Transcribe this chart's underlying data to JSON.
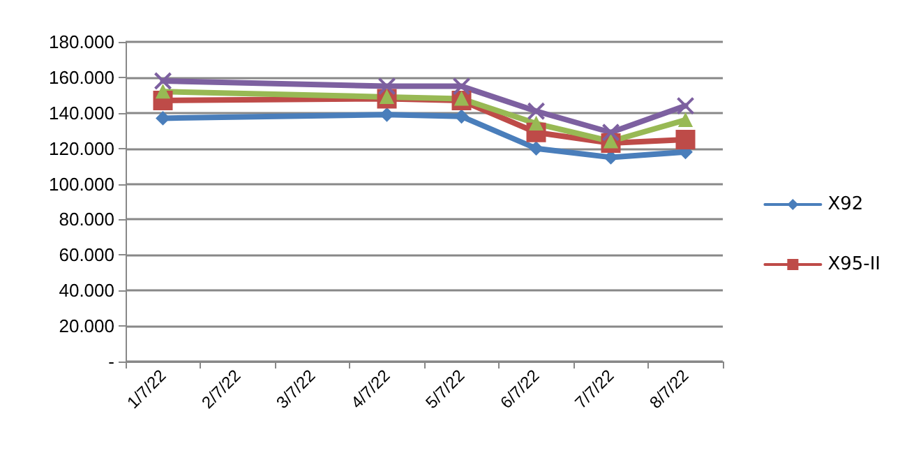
{
  "chart_data": {
    "type": "line",
    "categories": [
      "1/7/22",
      "2/7/22",
      "3/7/22",
      "4/7/22",
      "5/7/22",
      "6/7/22",
      "7/7/22",
      "8/7/22"
    ],
    "series": [
      {
        "name": "X92",
        "color": "#4a7ebb",
        "marker": "diamond",
        "values": [
          137000,
          null,
          null,
          139000,
          138000,
          120000,
          115000,
          118000
        ]
      },
      {
        "name": "X95-II",
        "color": "#be4b48",
        "marker": "square",
        "values": [
          147000,
          null,
          null,
          148000,
          147000,
          129000,
          123000,
          125000
        ]
      },
      {
        "color": "#98b954",
        "marker": "triangle",
        "values": [
          152000,
          null,
          null,
          149000,
          148000,
          134000,
          124000,
          136000
        ]
      },
      {
        "color": "#7d60a0",
        "marker": "cross",
        "values": [
          158000,
          null,
          null,
          155000,
          155000,
          141000,
          129000,
          144000
        ]
      }
    ],
    "ylim": [
      0,
      180000
    ],
    "yticks": [
      {
        "value": 0,
        "label": "-"
      },
      {
        "value": 20000,
        "label": "20.000"
      },
      {
        "value": 40000,
        "label": "40.000"
      },
      {
        "value": 60000,
        "label": "60.000"
      },
      {
        "value": 80000,
        "label": "80.000"
      },
      {
        "value": 100000,
        "label": "100.000"
      },
      {
        "value": 120000,
        "label": "120.000"
      },
      {
        "value": 140000,
        "label": "140.000"
      },
      {
        "value": 160000,
        "label": "160.000"
      },
      {
        "value": 180000,
        "label": "180.000"
      }
    ],
    "grid": "y",
    "legend": "right",
    "line_style": "solid"
  }
}
